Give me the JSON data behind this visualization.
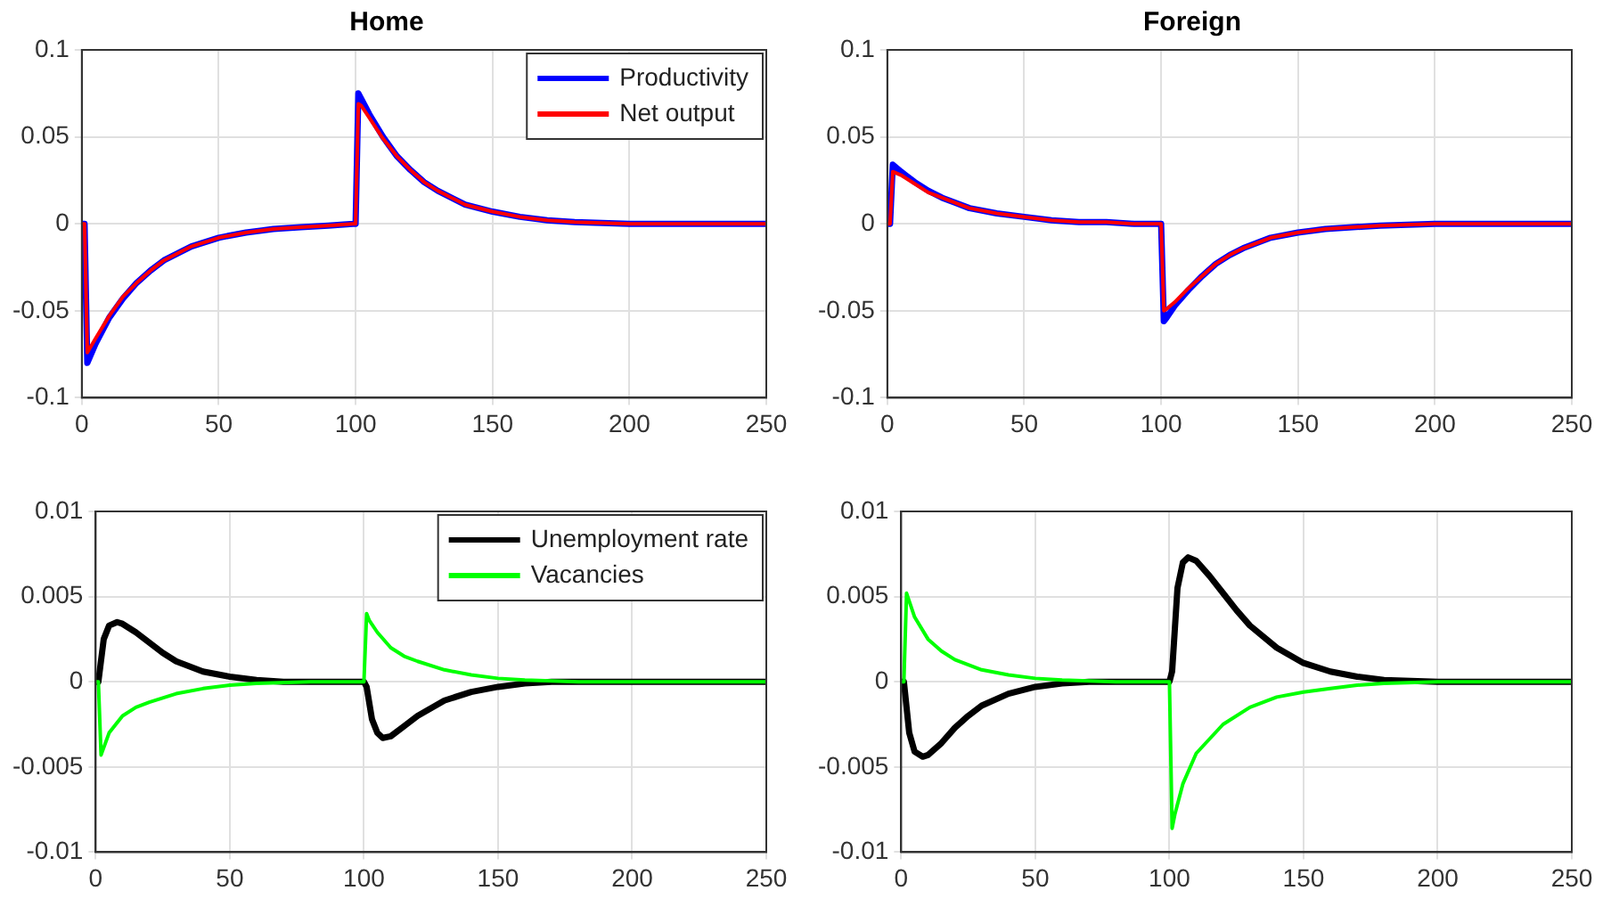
{
  "chart_data": [
    {
      "type": "line",
      "title": "Home",
      "xlim": [
        0,
        250
      ],
      "xticks": [
        0,
        50,
        100,
        150,
        200,
        250
      ],
      "ylim": [
        -0.1,
        0.1
      ],
      "yticks": [
        -0.1,
        -0.05,
        0,
        0.05,
        0.1
      ],
      "grid": true,
      "legend": "top right",
      "series": [
        {
          "name": "Productivity",
          "color": "#0000ff",
          "x": [
            0,
            1,
            2,
            5,
            10,
            15,
            20,
            25,
            30,
            40,
            50,
            60,
            70,
            80,
            90,
            99,
            100,
            101,
            102,
            105,
            110,
            115,
            120,
            125,
            130,
            140,
            150,
            160,
            170,
            180,
            200,
            225,
            250
          ],
          "values": [
            0,
            0,
            -0.08,
            -0.069,
            -0.054,
            -0.043,
            -0.034,
            -0.027,
            -0.021,
            -0.013,
            -0.008,
            -0.005,
            -0.003,
            -0.002,
            -0.001,
            0,
            0,
            0.075,
            0.072,
            0.063,
            0.05,
            0.039,
            0.031,
            0.024,
            0.019,
            0.011,
            0.007,
            0.004,
            0.002,
            0.001,
            0,
            0,
            0
          ]
        },
        {
          "name": "Net output",
          "color": "#ff0000",
          "x": [
            0,
            1,
            2,
            5,
            10,
            15,
            20,
            25,
            30,
            40,
            50,
            60,
            70,
            80,
            90,
            99,
            100,
            101,
            102,
            105,
            110,
            115,
            120,
            125,
            130,
            140,
            150,
            160,
            170,
            180,
            200,
            225,
            250
          ],
          "values": [
            0,
            0,
            -0.074,
            -0.066,
            -0.053,
            -0.042,
            -0.034,
            -0.027,
            -0.021,
            -0.013,
            -0.008,
            -0.005,
            -0.003,
            -0.002,
            -0.001,
            0,
            0,
            0.069,
            0.068,
            0.061,
            0.049,
            0.039,
            0.031,
            0.024,
            0.019,
            0.011,
            0.007,
            0.004,
            0.002,
            0.001,
            0,
            0,
            0
          ]
        }
      ]
    },
    {
      "type": "line",
      "title": "Foreign",
      "xlim": [
        0,
        250
      ],
      "xticks": [
        0,
        50,
        100,
        150,
        200,
        250
      ],
      "ylim": [
        -0.1,
        0.1
      ],
      "yticks": [
        -0.1,
        -0.05,
        0,
        0.05,
        0.1
      ],
      "grid": true,
      "series": [
        {
          "color": "#0000ff",
          "x": [
            0,
            1,
            2,
            5,
            10,
            15,
            20,
            25,
            30,
            40,
            50,
            60,
            70,
            80,
            90,
            99,
            100,
            101,
            102,
            105,
            110,
            115,
            120,
            125,
            130,
            140,
            150,
            160,
            170,
            180,
            200,
            225,
            250
          ],
          "values": [
            0,
            0,
            0.034,
            0.03,
            0.024,
            0.019,
            0.015,
            0.012,
            0.009,
            0.006,
            0.004,
            0.002,
            0.001,
            0.001,
            0,
            0,
            0,
            -0.056,
            -0.054,
            -0.047,
            -0.038,
            -0.03,
            -0.023,
            -0.018,
            -0.014,
            -0.008,
            -0.005,
            -0.003,
            -0.002,
            -0.001,
            0,
            0,
            0
          ]
        },
        {
          "color": "#ff0000",
          "x": [
            0,
            1,
            2,
            5,
            10,
            15,
            20,
            25,
            30,
            40,
            50,
            60,
            70,
            80,
            90,
            99,
            100,
            101,
            102,
            105,
            110,
            115,
            120,
            125,
            130,
            140,
            150,
            160,
            170,
            180,
            200,
            225,
            250
          ],
          "values": [
            0,
            0,
            0.03,
            0.028,
            0.023,
            0.018,
            0.015,
            0.012,
            0.009,
            0.006,
            0.004,
            0.002,
            0.001,
            0.001,
            0,
            0,
            0,
            -0.05,
            -0.049,
            -0.045,
            -0.037,
            -0.03,
            -0.023,
            -0.018,
            -0.014,
            -0.008,
            -0.005,
            -0.003,
            -0.002,
            -0.001,
            0,
            0,
            0
          ]
        }
      ]
    },
    {
      "type": "line",
      "xlim": [
        0,
        250
      ],
      "xticks": [
        0,
        50,
        100,
        150,
        200,
        250
      ],
      "ylim": [
        -0.01,
        0.01
      ],
      "yticks": [
        -0.01,
        -0.005,
        0,
        0.005,
        0.01
      ],
      "grid": true,
      "legend": "top right",
      "series": [
        {
          "name": "Unemployment rate",
          "color": "#000000",
          "x": [
            0,
            1,
            3,
            5,
            8,
            10,
            15,
            20,
            25,
            30,
            40,
            50,
            60,
            70,
            80,
            100,
            101,
            103,
            105,
            107,
            110,
            115,
            120,
            130,
            140,
            150,
            160,
            170,
            180,
            200,
            250
          ],
          "values": [
            0,
            0,
            0.0025,
            0.0033,
            0.0035,
            0.0034,
            0.0029,
            0.0023,
            0.0017,
            0.0012,
            0.0006,
            0.0003,
            0.0001,
            0,
            0,
            0,
            -0.0003,
            -0.0022,
            -0.003,
            -0.0033,
            -0.0032,
            -0.0026,
            -0.002,
            -0.0011,
            -0.0006,
            -0.0003,
            -0.0001,
            0,
            0,
            0,
            0
          ]
        },
        {
          "name": "Vacancies",
          "color": "#00ff00",
          "x": [
            0,
            1,
            2,
            5,
            10,
            15,
            20,
            30,
            40,
            50,
            60,
            80,
            100,
            101,
            102,
            105,
            110,
            115,
            120,
            130,
            140,
            150,
            160,
            180,
            200,
            250
          ],
          "values": [
            0,
            0,
            -0.0043,
            -0.003,
            -0.002,
            -0.0015,
            -0.0012,
            -0.0007,
            -0.0004,
            -0.0002,
            -0.0001,
            0,
            0,
            0.004,
            0.0036,
            0.0029,
            0.002,
            0.0015,
            0.0012,
            0.0007,
            0.0004,
            0.0002,
            0.0001,
            0,
            0,
            0
          ]
        }
      ]
    },
    {
      "type": "line",
      "xlim": [
        0,
        250
      ],
      "xticks": [
        0,
        50,
        100,
        150,
        200,
        250
      ],
      "ylim": [
        -0.01,
        0.01
      ],
      "yticks": [
        -0.01,
        -0.005,
        0,
        0.005,
        0.01
      ],
      "grid": true,
      "series": [
        {
          "color": "#000000",
          "x": [
            0,
            1,
            3,
            5,
            8,
            10,
            15,
            20,
            25,
            30,
            40,
            50,
            60,
            70,
            80,
            100,
            101,
            103,
            105,
            107,
            110,
            115,
            120,
            125,
            130,
            140,
            150,
            160,
            170,
            180,
            200,
            250
          ],
          "values": [
            0,
            0,
            -0.003,
            -0.0041,
            -0.0044,
            -0.0043,
            -0.0036,
            -0.0027,
            -0.002,
            -0.0014,
            -0.0007,
            -0.0003,
            -0.0001,
            0,
            0,
            0,
            0.0006,
            0.0055,
            0.007,
            0.0073,
            0.0071,
            0.0062,
            0.0052,
            0.0042,
            0.0033,
            0.002,
            0.0011,
            0.0006,
            0.0003,
            0.0001,
            0,
            0
          ]
        },
        {
          "color": "#00ff00",
          "x": [
            0,
            1,
            2,
            5,
            10,
            15,
            20,
            30,
            40,
            50,
            60,
            80,
            100,
            101,
            102,
            105,
            110,
            120,
            130,
            140,
            150,
            160,
            170,
            180,
            200,
            250
          ],
          "values": [
            0,
            0,
            0.0052,
            0.0038,
            0.0025,
            0.0018,
            0.0013,
            0.0007,
            0.0004,
            0.0002,
            0.0001,
            0,
            0,
            -0.0086,
            -0.0078,
            -0.006,
            -0.0042,
            -0.0025,
            -0.0015,
            -0.0009,
            -0.0006,
            -0.0004,
            -0.0002,
            -0.0001,
            0,
            0
          ]
        }
      ]
    }
  ]
}
